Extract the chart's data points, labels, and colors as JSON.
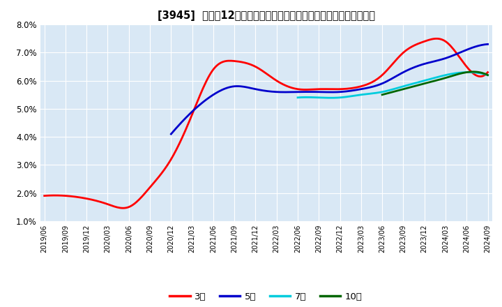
{
  "title": "[3945]  売上高12か月移動合計の対前年同期増減率の標準偏差の推移",
  "title_fontsize": 10.5,
  "ylim": [
    0.01,
    0.08
  ],
  "yticks": [
    0.01,
    0.02,
    0.03,
    0.04,
    0.05,
    0.06,
    0.07,
    0.08
  ],
  "yticklabels": [
    "1.0%",
    "2.0%",
    "3.0%",
    "4.0%",
    "5.0%",
    "6.0%",
    "7.0%",
    "8.0%"
  ],
  "background_color": "#d9e8f5",
  "legend": [
    "3年",
    "5年",
    "7年",
    "10年"
  ],
  "legend_colors": [
    "#ff0000",
    "#0000cc",
    "#00ccdd",
    "#006600"
  ],
  "series_3y": [
    [
      2019,
      6,
      0.019
    ],
    [
      2019,
      9,
      0.019
    ],
    [
      2019,
      12,
      0.018
    ],
    [
      2020,
      3,
      0.016
    ],
    [
      2020,
      6,
      0.015
    ],
    [
      2020,
      9,
      0.022
    ],
    [
      2020,
      12,
      0.032
    ],
    [
      2021,
      3,
      0.048
    ],
    [
      2021,
      6,
      0.064
    ],
    [
      2021,
      9,
      0.067
    ],
    [
      2021,
      12,
      0.065
    ],
    [
      2022,
      3,
      0.06
    ],
    [
      2022,
      6,
      0.057
    ],
    [
      2022,
      9,
      0.057
    ],
    [
      2022,
      12,
      0.057
    ],
    [
      2023,
      3,
      0.058
    ],
    [
      2023,
      6,
      0.062
    ],
    [
      2023,
      9,
      0.07
    ],
    [
      2023,
      12,
      0.074
    ],
    [
      2024,
      3,
      0.074
    ],
    [
      2024,
      6,
      0.065
    ],
    [
      2024,
      9,
      0.063
    ]
  ],
  "series_5y": [
    [
      2020,
      12,
      0.041
    ],
    [
      2021,
      3,
      0.049
    ],
    [
      2021,
      6,
      0.055
    ],
    [
      2021,
      9,
      0.058
    ],
    [
      2021,
      12,
      0.057
    ],
    [
      2022,
      3,
      0.056
    ],
    [
      2022,
      6,
      0.056
    ],
    [
      2022,
      9,
      0.056
    ],
    [
      2022,
      12,
      0.056
    ],
    [
      2023,
      3,
      0.057
    ],
    [
      2023,
      6,
      0.059
    ],
    [
      2023,
      9,
      0.063
    ],
    [
      2023,
      12,
      0.066
    ],
    [
      2024,
      3,
      0.068
    ],
    [
      2024,
      6,
      0.071
    ],
    [
      2024,
      9,
      0.073
    ]
  ],
  "series_7y": [
    [
      2022,
      6,
      0.054
    ],
    [
      2022,
      9,
      0.054
    ],
    [
      2022,
      12,
      0.054
    ],
    [
      2023,
      3,
      0.055
    ],
    [
      2023,
      6,
      0.056
    ],
    [
      2023,
      9,
      0.058
    ],
    [
      2023,
      12,
      0.06
    ],
    [
      2024,
      3,
      0.062
    ],
    [
      2024,
      6,
      0.063
    ],
    [
      2024,
      9,
      0.062
    ]
  ],
  "series_10y": [
    [
      2023,
      6,
      0.055
    ],
    [
      2023,
      9,
      0.057
    ],
    [
      2023,
      12,
      0.059
    ],
    [
      2024,
      3,
      0.061
    ],
    [
      2024,
      6,
      0.063
    ],
    [
      2024,
      9,
      0.062
    ]
  ]
}
